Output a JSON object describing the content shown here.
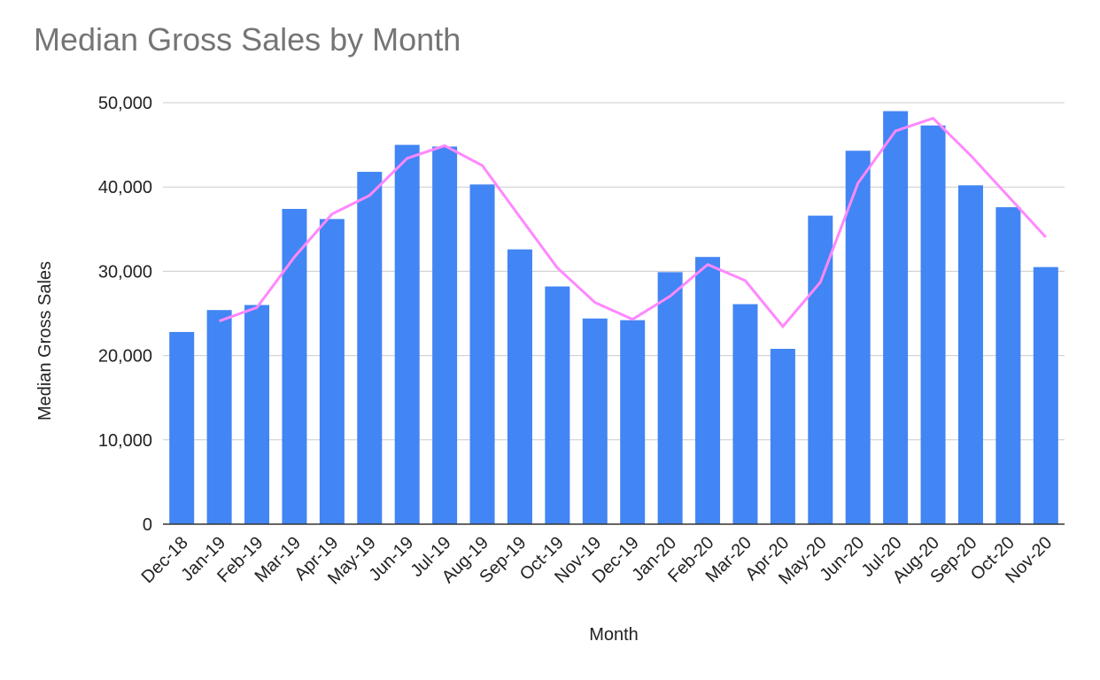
{
  "chart_data": {
    "type": "bar",
    "title": "Median Gross Sales by Month",
    "x_label": "Month",
    "y_label": "Median Gross Sales",
    "categories": [
      "Dec-18",
      "Jan-19",
      "Feb-19",
      "Mar-19",
      "Apr-19",
      "May-19",
      "Jun-19",
      "Jul-19",
      "Aug-19",
      "Sep-19",
      "Oct-19",
      "Nov-19",
      "Dec-19",
      "Jan-20",
      "Feb-20",
      "Mar-20",
      "Apr-20",
      "May-20",
      "Jun-20",
      "Jul-20",
      "Aug-20",
      "Sep-20",
      "Oct-20",
      "Nov-20"
    ],
    "series": [
      {
        "type": "bar",
        "color": "#4285f4",
        "values": [
          22800,
          25400,
          26000,
          37400,
          36200,
          41800,
          45000,
          44800,
          40300,
          32600,
          28200,
          24400,
          24200,
          29900,
          31700,
          26100,
          20800,
          36600,
          44300,
          49000,
          47300,
          40200,
          37600,
          30500
        ]
      },
      {
        "type": "line",
        "color": "#ff88ff",
        "values": [
          null,
          24100,
          25700,
          31700,
          36800,
          39000,
          43400,
          44900,
          42550,
          36450,
          30400,
          26300,
          24300,
          27050,
          30800,
          28900,
          23450,
          28700,
          40450,
          46650,
          48150,
          43750,
          38900,
          34050
        ]
      }
    ],
    "ylim": [
      0,
      50000
    ],
    "yticks": [
      0,
      {
        "value": 10000,
        "label": "10,000"
      },
      {
        "value": 20000,
        "label": "20,000"
      },
      {
        "value": 30000,
        "label": "30,000"
      },
      {
        "value": 40000,
        "label": "40,000"
      },
      {
        "value": 50000,
        "label": "50,000"
      }
    ],
    "grid": true
  }
}
